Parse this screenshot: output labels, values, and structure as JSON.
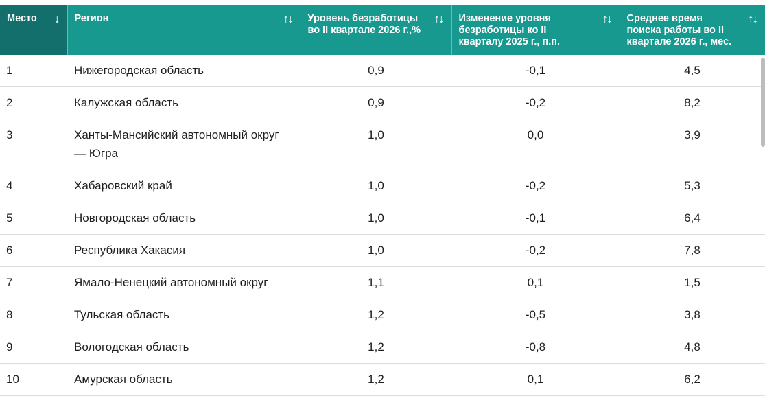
{
  "table": {
    "headers": [
      {
        "label": "Место",
        "sort": "↓"
      },
      {
        "label": "Регион",
        "sort": "↑↓"
      },
      {
        "label": "Уровень безработицы во II квартале 2026 г.,%",
        "sort": "↑↓"
      },
      {
        "label": "Изменение уровня безработицы ко II кварталу 2025 г., п.п.",
        "sort": "↑↓"
      },
      {
        "label": "Среднее время поиска работы во II квартале 2026 г., мес.",
        "sort": "↑↓"
      }
    ],
    "rows": [
      {
        "rank": "1",
        "region": "Нижегородская область",
        "rate": "0,9",
        "change": "-0,1",
        "search": "4,5"
      },
      {
        "rank": "2",
        "region": "Калужская область",
        "rate": "0,9",
        "change": "-0,2",
        "search": "8,2"
      },
      {
        "rank": "3",
        "region": "Ханты-Мансийский автономный округ — Югра",
        "rate": "1,0",
        "change": "0,0",
        "search": "3,9"
      },
      {
        "rank": "4",
        "region": "Хабаровский край",
        "rate": "1,0",
        "change": "-0,2",
        "search": "5,3"
      },
      {
        "rank": "5",
        "region": "Новгородская область",
        "rate": "1,0",
        "change": "-0,1",
        "search": "6,4"
      },
      {
        "rank": "6",
        "region": "Республика Хакасия",
        "rate": "1,0",
        "change": "-0,2",
        "search": "7,8"
      },
      {
        "rank": "7",
        "region": "Ямало-Ненецкий автономный округ",
        "rate": "1,1",
        "change": "0,1",
        "search": "1,5"
      },
      {
        "rank": "8",
        "region": "Тульская область",
        "rate": "1,2",
        "change": "-0,5",
        "search": "3,8"
      },
      {
        "rank": "9",
        "region": "Вологодская область",
        "rate": "1,2",
        "change": "-0,8",
        "search": "4,8"
      },
      {
        "rank": "10",
        "region": "Амурская область",
        "rate": "1,2",
        "change": "0,1",
        "search": "6,2"
      }
    ]
  },
  "colors": {
    "header_teal": "#17998f",
    "header_dark_teal": "#126f6b",
    "row_border": "#dcdcdc"
  }
}
